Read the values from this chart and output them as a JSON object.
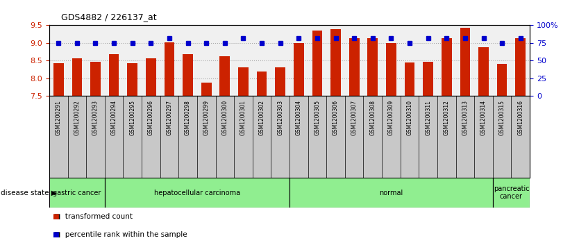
{
  "title": "GDS4882 / 226137_at",
  "samples": [
    "GSM1200291",
    "GSM1200292",
    "GSM1200293",
    "GSM1200294",
    "GSM1200295",
    "GSM1200296",
    "GSM1200297",
    "GSM1200298",
    "GSM1200299",
    "GSM1200300",
    "GSM1200301",
    "GSM1200302",
    "GSM1200303",
    "GSM1200304",
    "GSM1200305",
    "GSM1200306",
    "GSM1200307",
    "GSM1200308",
    "GSM1200309",
    "GSM1200310",
    "GSM1200311",
    "GSM1200312",
    "GSM1200313",
    "GSM1200314",
    "GSM1200315",
    "GSM1200316"
  ],
  "transformed_count": [
    8.42,
    8.57,
    8.47,
    8.67,
    8.43,
    8.57,
    9.01,
    8.68,
    7.87,
    8.63,
    8.31,
    8.18,
    8.3,
    9.0,
    9.35,
    9.38,
    9.13,
    9.13,
    9.0,
    8.45,
    8.47,
    9.13,
    9.43,
    8.87,
    8.4,
    9.13
  ],
  "percentile_rank": [
    75,
    75,
    75,
    75,
    75,
    75,
    82,
    75,
    75,
    75,
    82,
    75,
    75,
    82,
    82,
    82,
    82,
    82,
    82,
    75,
    82,
    82,
    82,
    82,
    75,
    82
  ],
  "ylim_left": [
    7.5,
    9.5
  ],
  "ylim_right": [
    0,
    100
  ],
  "yticks_left": [
    7.5,
    8.0,
    8.5,
    9.0,
    9.5
  ],
  "yticks_right": [
    0,
    25,
    50,
    75,
    100
  ],
  "bar_color": "#cc2200",
  "dot_color": "#0000cc",
  "bar_bottom": 7.5,
  "group_boundaries": [
    {
      "label": "gastric cancer",
      "start": 0,
      "end": 3
    },
    {
      "label": "hepatocellular carcinoma",
      "start": 3,
      "end": 13
    },
    {
      "label": "normal",
      "start": 13,
      "end": 24
    },
    {
      "label": "pancreatic\ncancer",
      "start": 24,
      "end": 26
    }
  ],
  "group_green": "#90EE90",
  "xtick_bg": "#c8c8c8",
  "plot_bg": "#f0f0f0",
  "bg_color": "#ffffff",
  "grid_color": "#aaaaaa",
  "tick_color_left": "#cc2200",
  "tick_color_right": "#0000cc",
  "bar_width": 0.55
}
